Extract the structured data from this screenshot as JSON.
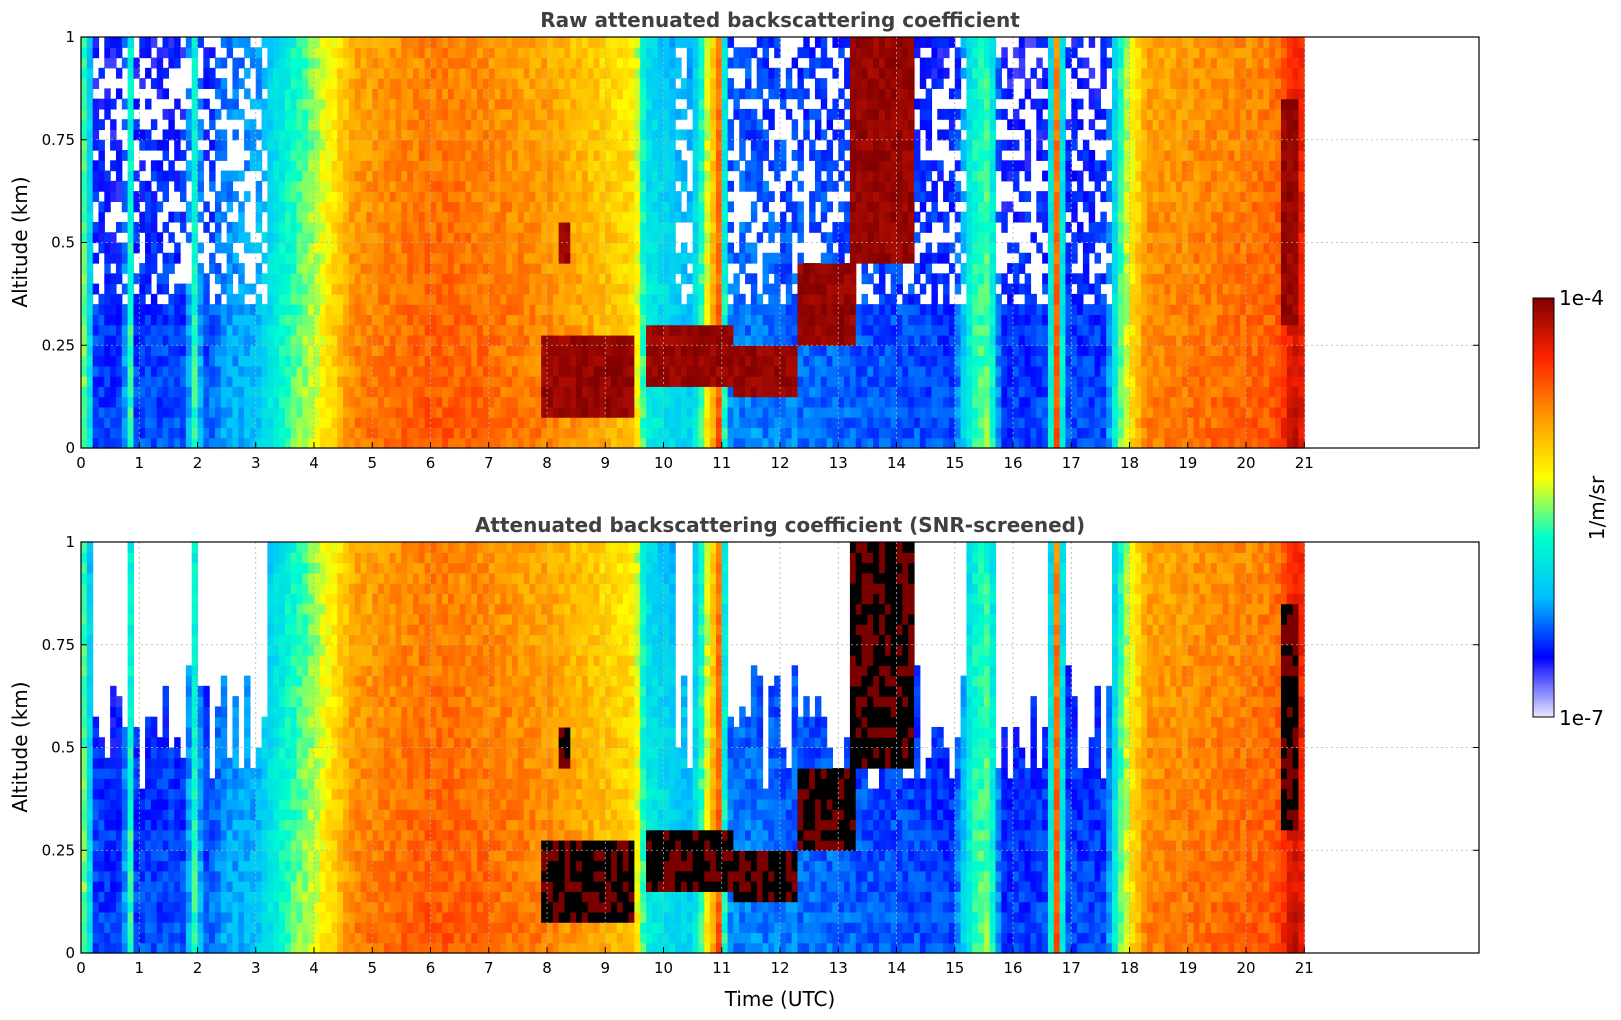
{
  "figure": {
    "colorbar": {
      "label": "1/m/sr",
      "max_label": "1e-4",
      "min_label": "1e-7",
      "scale": "log",
      "range": [
        1e-07,
        0.0001
      ],
      "colormap": [
        "#e8e8ff",
        "#0000ff",
        "#00bfff",
        "#00ffcc",
        "#ffff00",
        "#ff9900",
        "#ff2200",
        "#800000"
      ]
    }
  },
  "chart_data": [
    {
      "type": "heatmap",
      "title": "Raw attenuated backscattering coefficient",
      "xlabel": "",
      "ylabel": "Altitude (km)",
      "xlim": [
        0,
        24
      ],
      "ylim": [
        0,
        1
      ],
      "xticks": [
        "0",
        "1",
        "2",
        "3",
        "4",
        "5",
        "6",
        "7",
        "8",
        "9",
        "10",
        "11",
        "12",
        "13",
        "14",
        "15",
        "16",
        "17",
        "18",
        "19",
        "20",
        "21"
      ],
      "yticks": [
        "0",
        "0.25",
        "0.5",
        "0.75",
        "1"
      ],
      "grid": true,
      "data_end_time": 21,
      "screened": false,
      "time_profile": [
        {
          "t": 0.0,
          "v": 0.55
        },
        {
          "t": 0.1,
          "v": 0.45
        },
        {
          "t": 0.25,
          "v": 0.2
        },
        {
          "t": 0.7,
          "v": 0.18
        },
        {
          "t": 0.85,
          "v": 0.45
        },
        {
          "t": 0.95,
          "v": 0.2
        },
        {
          "t": 1.8,
          "v": 0.2
        },
        {
          "t": 1.95,
          "v": 0.45
        },
        {
          "t": 2.1,
          "v": 0.2
        },
        {
          "t": 2.5,
          "v": 0.28
        },
        {
          "t": 3.0,
          "v": 0.3
        },
        {
          "t": 3.4,
          "v": 0.42
        },
        {
          "t": 4.0,
          "v": 0.55
        },
        {
          "t": 4.7,
          "v": 0.75
        },
        {
          "t": 6.0,
          "v": 0.8
        },
        {
          "t": 7.0,
          "v": 0.78
        },
        {
          "t": 8.0,
          "v": 0.75
        },
        {
          "t": 8.8,
          "v": 0.7
        },
        {
          "t": 9.5,
          "v": 0.65
        },
        {
          "t": 9.7,
          "v": 0.4
        },
        {
          "t": 10.5,
          "v": 0.32
        },
        {
          "t": 10.95,
          "v": 0.8
        },
        {
          "t": 11.1,
          "v": 0.25
        },
        {
          "t": 15.0,
          "v": 0.2
        },
        {
          "t": 15.3,
          "v": 0.45
        },
        {
          "t": 15.6,
          "v": 0.5
        },
        {
          "t": 15.8,
          "v": 0.18
        },
        {
          "t": 16.6,
          "v": 0.2
        },
        {
          "t": 16.75,
          "v": 0.8
        },
        {
          "t": 16.9,
          "v": 0.2
        },
        {
          "t": 17.6,
          "v": 0.2
        },
        {
          "t": 17.8,
          "v": 0.45
        },
        {
          "t": 18.0,
          "v": 0.6
        },
        {
          "t": 18.3,
          "v": 0.75
        },
        {
          "t": 20.5,
          "v": 0.8
        },
        {
          "t": 20.8,
          "v": 0.92
        },
        {
          "t": 21.0,
          "v": 0.9
        }
      ],
      "cloud_layers": [
        {
          "start": 7.9,
          "end": 9.5,
          "base": 0.08,
          "top": 0.28
        },
        {
          "start": 8.2,
          "end": 8.4,
          "base": 0.46,
          "top": 0.54
        },
        {
          "start": 9.7,
          "end": 11.2,
          "base": 0.15,
          "top": 0.3
        },
        {
          "start": 11.2,
          "end": 12.3,
          "base": 0.12,
          "top": 0.25
        },
        {
          "start": 12.3,
          "end": 13.3,
          "base": 0.25,
          "top": 0.45
        },
        {
          "start": 13.2,
          "end": 14.3,
          "base": 0.45,
          "top": 1.0
        },
        {
          "start": 20.6,
          "end": 20.95,
          "base": 0.3,
          "top": 0.85
        }
      ]
    },
    {
      "type": "heatmap",
      "title": "Attenuated backscattering coefficient (SNR-screened)",
      "xlabel": "Time (UTC)",
      "ylabel": "Altitude (km)",
      "xlim": [
        0,
        24
      ],
      "ylim": [
        0,
        1
      ],
      "xticks": [
        "0",
        "1",
        "2",
        "3",
        "4",
        "5",
        "6",
        "7",
        "8",
        "9",
        "10",
        "11",
        "12",
        "13",
        "14",
        "15",
        "16",
        "17",
        "18",
        "19",
        "20",
        "21"
      ],
      "yticks": [
        "0",
        "0.25",
        "0.5",
        "0.75",
        "1"
      ],
      "grid": true,
      "data_end_time": 21,
      "screened": true
    }
  ]
}
